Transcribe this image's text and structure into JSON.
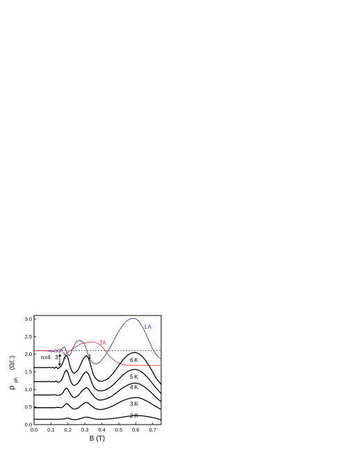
{
  "chart_data": {
    "type": "line",
    "xlabel": "B (T)",
    "ylabel_main": "ρ",
    "ylabel_sub": "ph",
    "ylabel_unit": "(Ω/□)",
    "xlim": [
      0.0,
      0.75
    ],
    "ylim": [
      0.0,
      3.1
    ],
    "x_ticks": [
      "0.0",
      "0.1",
      "0.2",
      "0.3",
      "0.4",
      "0.5",
      "0.6",
      "0.7"
    ],
    "y_ticks": [
      "0.0",
      "0.5",
      "1.0",
      "1.5",
      "2.0",
      "2.5",
      "3.0"
    ],
    "grid": false,
    "reference_line_y": 2.1,
    "series": [
      {
        "name": "LA",
        "color": "#3333cc",
        "kind": "phonon",
        "x": [
          0.0,
          0.06,
          0.09,
          0.11,
          0.12,
          0.13,
          0.14,
          0.15,
          0.16,
          0.17,
          0.18,
          0.19,
          0.2,
          0.21,
          0.22,
          0.23,
          0.25,
          0.27,
          0.29,
          0.3,
          0.31,
          0.33,
          0.35,
          0.37,
          0.39,
          0.41,
          0.43,
          0.45,
          0.47,
          0.49,
          0.51,
          0.53,
          0.55,
          0.57,
          0.59,
          0.6,
          0.62,
          0.64,
          0.66,
          0.68,
          0.7,
          0.72,
          0.75
        ],
        "y": [
          2.1,
          2.1,
          2.09,
          2.07,
          2.1,
          2.13,
          2.08,
          2.05,
          2.11,
          2.19,
          2.2,
          2.1,
          1.98,
          1.96,
          2.05,
          2.18,
          2.36,
          2.4,
          2.34,
          2.26,
          2.12,
          1.84,
          1.74,
          1.72,
          1.78,
          1.9,
          2.04,
          2.2,
          2.38,
          2.57,
          2.73,
          2.87,
          2.96,
          3.01,
          3.02,
          3.01,
          2.93,
          2.78,
          2.58,
          2.36,
          2.15,
          1.99,
          1.86
        ]
      },
      {
        "name": "TA",
        "color": "#e63333",
        "kind": "phonon",
        "x": [
          0.0,
          0.08,
          0.1,
          0.12,
          0.13,
          0.14,
          0.15,
          0.16,
          0.17,
          0.18,
          0.2,
          0.22,
          0.24,
          0.26,
          0.28,
          0.3,
          0.32,
          0.34,
          0.36,
          0.38,
          0.4,
          0.42,
          0.44,
          0.46,
          0.48,
          0.5,
          0.52,
          0.55,
          0.6,
          0.65,
          0.7,
          0.75
        ],
        "y": [
          2.1,
          2.1,
          2.11,
          2.08,
          2.06,
          2.11,
          2.15,
          2.13,
          2.05,
          2.01,
          2.05,
          2.12,
          2.19,
          2.25,
          2.3,
          2.32,
          2.34,
          2.35,
          2.34,
          2.3,
          2.22,
          2.1,
          1.98,
          1.88,
          1.8,
          1.75,
          1.71,
          1.69,
          1.68,
          1.68,
          1.68,
          1.68
        ]
      },
      {
        "name": "6 K",
        "color": "#000000",
        "kind": "temperature",
        "x": [
          0.0,
          0.08,
          0.09,
          0.1,
          0.11,
          0.12,
          0.13,
          0.14,
          0.15,
          0.16,
          0.17,
          0.18,
          0.19,
          0.2,
          0.21,
          0.22,
          0.23,
          0.24,
          0.26,
          0.28,
          0.29,
          0.3,
          0.31,
          0.32,
          0.33,
          0.34,
          0.35,
          0.36,
          0.38,
          0.4,
          0.42,
          0.44,
          0.46,
          0.48,
          0.5,
          0.52,
          0.54,
          0.56,
          0.58,
          0.6,
          0.62,
          0.64,
          0.66,
          0.68,
          0.7,
          0.72,
          0.75
        ],
        "y": [
          1.62,
          1.62,
          1.63,
          1.61,
          1.63,
          1.6,
          1.64,
          1.59,
          1.62,
          1.66,
          1.76,
          1.9,
          1.98,
          1.9,
          1.7,
          1.55,
          1.47,
          1.46,
          1.55,
          1.76,
          1.86,
          1.93,
          1.96,
          1.9,
          1.76,
          1.58,
          1.43,
          1.33,
          1.24,
          1.23,
          1.26,
          1.32,
          1.42,
          1.54,
          1.68,
          1.81,
          1.92,
          2.0,
          2.04,
          2.05,
          2.01,
          1.93,
          1.81,
          1.66,
          1.5,
          1.32,
          1.14
        ]
      },
      {
        "name": "5 K",
        "color": "#000000",
        "kind": "temperature",
        "x": [
          0.0,
          0.08,
          0.09,
          0.1,
          0.11,
          0.12,
          0.13,
          0.14,
          0.15,
          0.16,
          0.17,
          0.18,
          0.19,
          0.2,
          0.21,
          0.22,
          0.23,
          0.24,
          0.26,
          0.28,
          0.29,
          0.3,
          0.31,
          0.32,
          0.33,
          0.34,
          0.35,
          0.36,
          0.38,
          0.4,
          0.42,
          0.44,
          0.46,
          0.48,
          0.5,
          0.52,
          0.54,
          0.56,
          0.58,
          0.6,
          0.62,
          0.64,
          0.66,
          0.68,
          0.7,
          0.72,
          0.75
        ],
        "y": [
          1.22,
          1.22,
          1.23,
          1.21,
          1.23,
          1.21,
          1.24,
          1.2,
          1.22,
          1.25,
          1.34,
          1.48,
          1.55,
          1.48,
          1.32,
          1.19,
          1.12,
          1.11,
          1.18,
          1.34,
          1.42,
          1.48,
          1.5,
          1.45,
          1.34,
          1.2,
          1.09,
          1.02,
          0.96,
          0.96,
          0.98,
          1.03,
          1.1,
          1.19,
          1.29,
          1.39,
          1.47,
          1.53,
          1.56,
          1.57,
          1.54,
          1.48,
          1.39,
          1.28,
          1.16,
          1.04,
          0.88
        ]
      },
      {
        "name": "4 K",
        "color": "#000000",
        "kind": "temperature",
        "x": [
          0.0,
          0.1,
          0.12,
          0.14,
          0.16,
          0.17,
          0.18,
          0.19,
          0.2,
          0.21,
          0.22,
          0.23,
          0.24,
          0.26,
          0.28,
          0.3,
          0.31,
          0.32,
          0.34,
          0.36,
          0.38,
          0.4,
          0.42,
          0.44,
          0.46,
          0.48,
          0.5,
          0.52,
          0.54,
          0.56,
          0.58,
          0.6,
          0.62,
          0.64,
          0.66,
          0.68,
          0.7,
          0.72,
          0.75
        ],
        "y": [
          0.84,
          0.84,
          0.85,
          0.83,
          0.85,
          0.9,
          0.99,
          1.04,
          1.0,
          0.91,
          0.83,
          0.78,
          0.77,
          0.82,
          0.94,
          1.03,
          1.05,
          1.02,
          0.88,
          0.76,
          0.7,
          0.7,
          0.72,
          0.76,
          0.81,
          0.88,
          0.96,
          1.03,
          1.09,
          1.14,
          1.17,
          1.18,
          1.16,
          1.11,
          1.04,
          0.96,
          0.87,
          0.77,
          0.65
        ]
      },
      {
        "name": "3 K",
        "color": "#000000",
        "kind": "temperature",
        "x": [
          0.0,
          0.12,
          0.14,
          0.16,
          0.17,
          0.18,
          0.19,
          0.2,
          0.21,
          0.22,
          0.23,
          0.24,
          0.26,
          0.28,
          0.3,
          0.31,
          0.32,
          0.34,
          0.36,
          0.38,
          0.4,
          0.42,
          0.44,
          0.46,
          0.48,
          0.5,
          0.52,
          0.54,
          0.56,
          0.58,
          0.6,
          0.62,
          0.64,
          0.66,
          0.68,
          0.7,
          0.72,
          0.75
        ],
        "y": [
          0.48,
          0.48,
          0.49,
          0.48,
          0.5,
          0.55,
          0.6,
          0.58,
          0.53,
          0.48,
          0.45,
          0.44,
          0.47,
          0.55,
          0.62,
          0.63,
          0.61,
          0.53,
          0.46,
          0.43,
          0.43,
          0.45,
          0.48,
          0.52,
          0.57,
          0.62,
          0.67,
          0.71,
          0.74,
          0.76,
          0.77,
          0.76,
          0.73,
          0.68,
          0.63,
          0.57,
          0.51,
          0.43
        ]
      },
      {
        "name": "2 K",
        "color": "#000000",
        "kind": "temperature",
        "x": [
          0.0,
          0.15,
          0.18,
          0.19,
          0.2,
          0.21,
          0.22,
          0.24,
          0.26,
          0.28,
          0.3,
          0.32,
          0.34,
          0.36,
          0.38,
          0.4,
          0.44,
          0.48,
          0.52,
          0.56,
          0.6,
          0.64,
          0.68,
          0.72,
          0.75
        ],
        "y": [
          0.15,
          0.15,
          0.16,
          0.18,
          0.18,
          0.17,
          0.15,
          0.14,
          0.15,
          0.18,
          0.21,
          0.21,
          0.18,
          0.16,
          0.15,
          0.15,
          0.16,
          0.18,
          0.21,
          0.24,
          0.26,
          0.25,
          0.22,
          0.18,
          0.13
        ]
      }
    ],
    "annotations": {
      "n4": "n=4",
      "n3": "3",
      "n2": "2",
      "n1": "1",
      "la": "LA",
      "ta": "TA",
      "t6": "6 K",
      "t5": "5 K",
      "t4": "4 K",
      "t3": "3 K",
      "t2": "2 K"
    }
  }
}
